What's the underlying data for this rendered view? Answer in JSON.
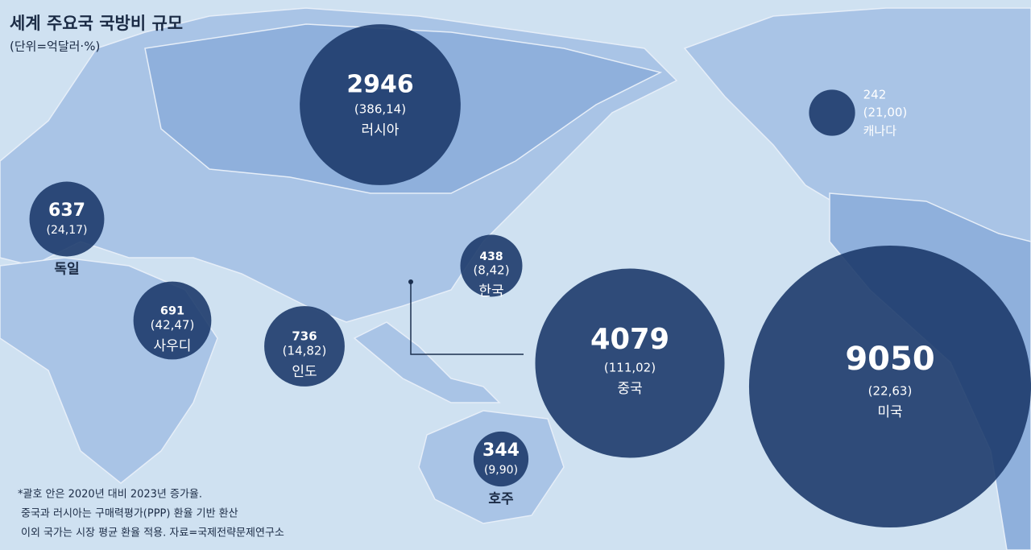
{
  "header": {
    "title": "세계 주요국 국방비 규모",
    "subtitle": "(단위=억달러·%)"
  },
  "countries": [
    {
      "name": "러시아",
      "spending": 2946,
      "change": "(386,14)"
    },
    {
      "name": "캐나다",
      "spending": 242,
      "change": "(21,00)"
    },
    {
      "name": "독일",
      "spending": 637,
      "change": "(24,17)"
    },
    {
      "name": "한국",
      "spending": 438,
      "change": "(8,42)"
    },
    {
      "name": "사우디",
      "spending": 691,
      "change": "(42,47)"
    },
    {
      "name": "인도",
      "spending": 736,
      "change": "(14,82)"
    },
    {
      "name": "중국",
      "spending": 4079,
      "change": "(111,02)"
    },
    {
      "name": "미국",
      "spending": 9050,
      "change": "(22,63)"
    },
    {
      "name": "호주",
      "spending": 344,
      "change": "(9,90)"
    }
  ],
  "notes": [
    "*괄호 안은 2020년 대비 2023년 증가율.",
    "중국과 러시아는 구매력평가(PPP) 환율 기반 환산",
    "이외 국가는 시장 평균 환율 적용. 자료=국제전략문제연구소"
  ]
}
